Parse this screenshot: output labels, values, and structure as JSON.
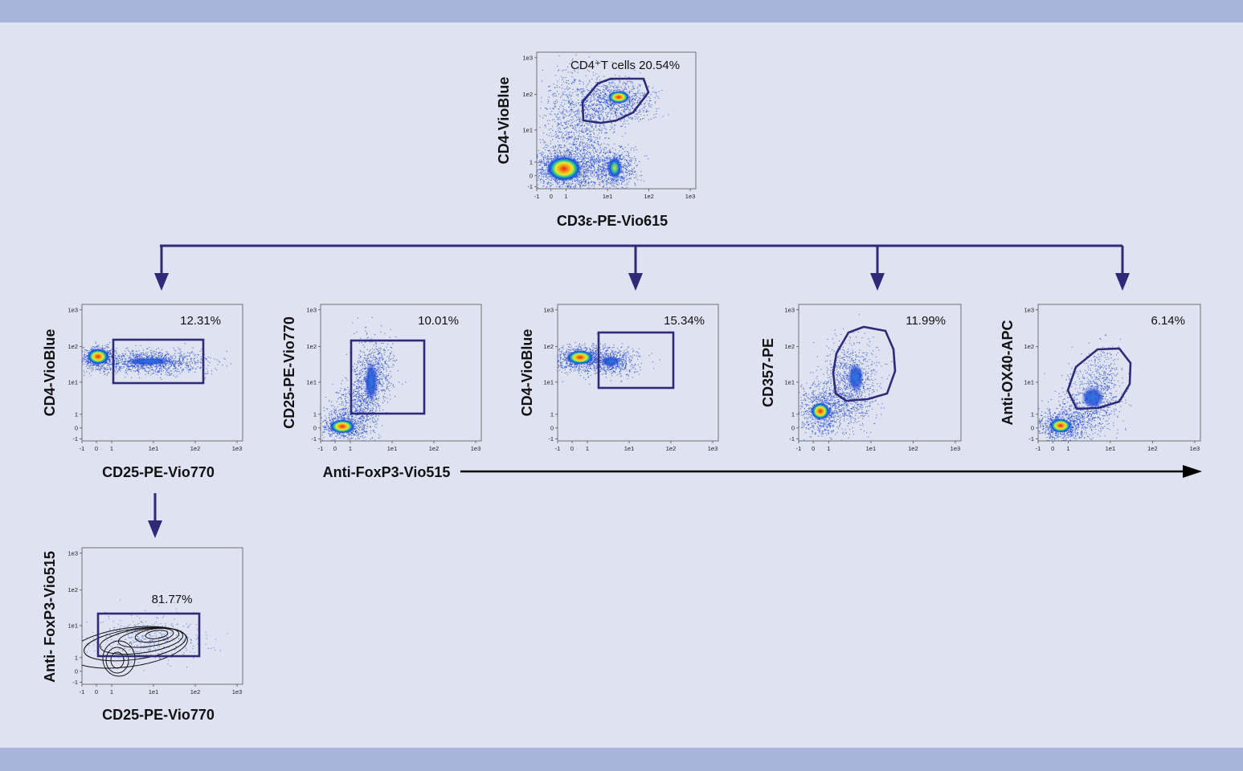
{
  "colors": {
    "background": "#dfe3f1",
    "band": "#a8b4da",
    "gate": "#2e2a78",
    "connector": "#2e2a78",
    "arrow": "#000000",
    "axis": "#444444"
  },
  "ticks": {
    "y": [
      "1e3",
      "1e2",
      "1e1",
      "1",
      "0",
      "-1"
    ],
    "x": [
      "-1",
      "0",
      "1",
      "1e1",
      "1e2",
      "1e3"
    ]
  },
  "plots": {
    "top": {
      "xlabel": "CD3ε-PE-Vio615",
      "ylabel": "CD4-VioBlue",
      "gate_label": "CD4⁺T cells 20.54%",
      "gate_shape": "polygon",
      "display": "density"
    },
    "p1": {
      "xlabel": "CD25-PE-Vio770",
      "ylabel": "CD4-VioBlue",
      "gate_label": "12.31%",
      "gate_shape": "rectangle",
      "display": "density"
    },
    "p2": {
      "xlabel": "Anti-FoxP3-Vio515",
      "ylabel": "CD25-PE-Vio770",
      "gate_label": "10.01%",
      "gate_shape": "rectangle",
      "display": "density"
    },
    "p3": {
      "xlabel": "",
      "ylabel": "CD4-VioBlue",
      "gate_label": "15.34%",
      "gate_shape": "rectangle",
      "display": "density"
    },
    "p4": {
      "xlabel": "",
      "ylabel": "CD357-PE",
      "gate_label": "11.99%",
      "gate_shape": "polygon",
      "display": "density"
    },
    "p5": {
      "xlabel": "",
      "ylabel": "Anti-OX40-APC",
      "gate_label": "6.14%",
      "gate_shape": "polygon",
      "display": "density"
    },
    "p6": {
      "xlabel": "CD25-PE-Vio770",
      "ylabel": "Anti- FoxP3-Vio515",
      "gate_label": "81.77%",
      "gate_shape": "rectangle",
      "display": "contour"
    }
  }
}
